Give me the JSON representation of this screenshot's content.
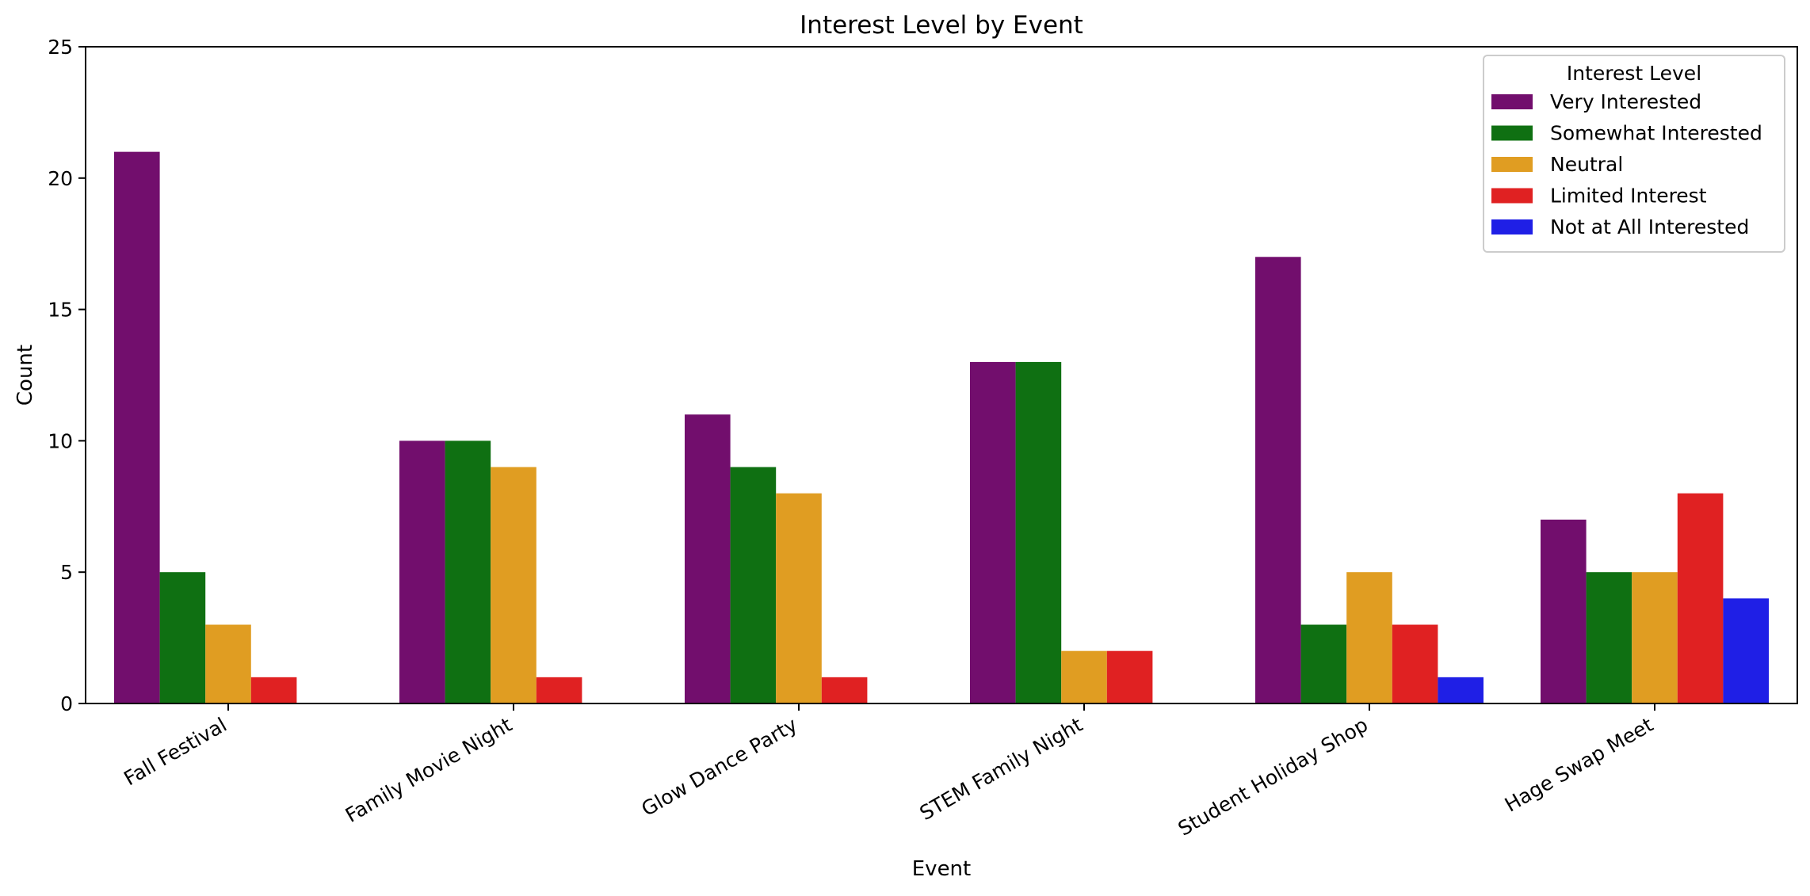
{
  "chart_data": {
    "type": "bar",
    "title": "Interest Level by Event",
    "xlabel": "Event",
    "ylabel": "Count",
    "ylim": [
      0,
      25
    ],
    "yticks": [
      0,
      5,
      10,
      15,
      20,
      25
    ],
    "categories": [
      "Fall Festival",
      "Family Movie Night",
      "Glow Dance Party",
      "STEM Family Night",
      "Student Holiday Shop",
      "Hage Swap Meet"
    ],
    "legend": {
      "title": "Interest Level",
      "placement": "top-right"
    },
    "series": [
      {
        "name": "Very Interested",
        "color": "#720e6d",
        "values": [
          21,
          10,
          11,
          13,
          17,
          7
        ]
      },
      {
        "name": "Somewhat Interested",
        "color": "#0f7012",
        "values": [
          5,
          10,
          9,
          13,
          3,
          5
        ]
      },
      {
        "name": "Neutral",
        "color": "#e09d22",
        "values": [
          3,
          9,
          8,
          2,
          5,
          5
        ]
      },
      {
        "name": "Limited Interest",
        "color": "#e02122",
        "values": [
          1,
          1,
          1,
          2,
          3,
          8
        ]
      },
      {
        "name": "Not at All Interested",
        "color": "#1f1fe6",
        "values": [
          0,
          0,
          0,
          0,
          1,
          4
        ]
      }
    ]
  }
}
